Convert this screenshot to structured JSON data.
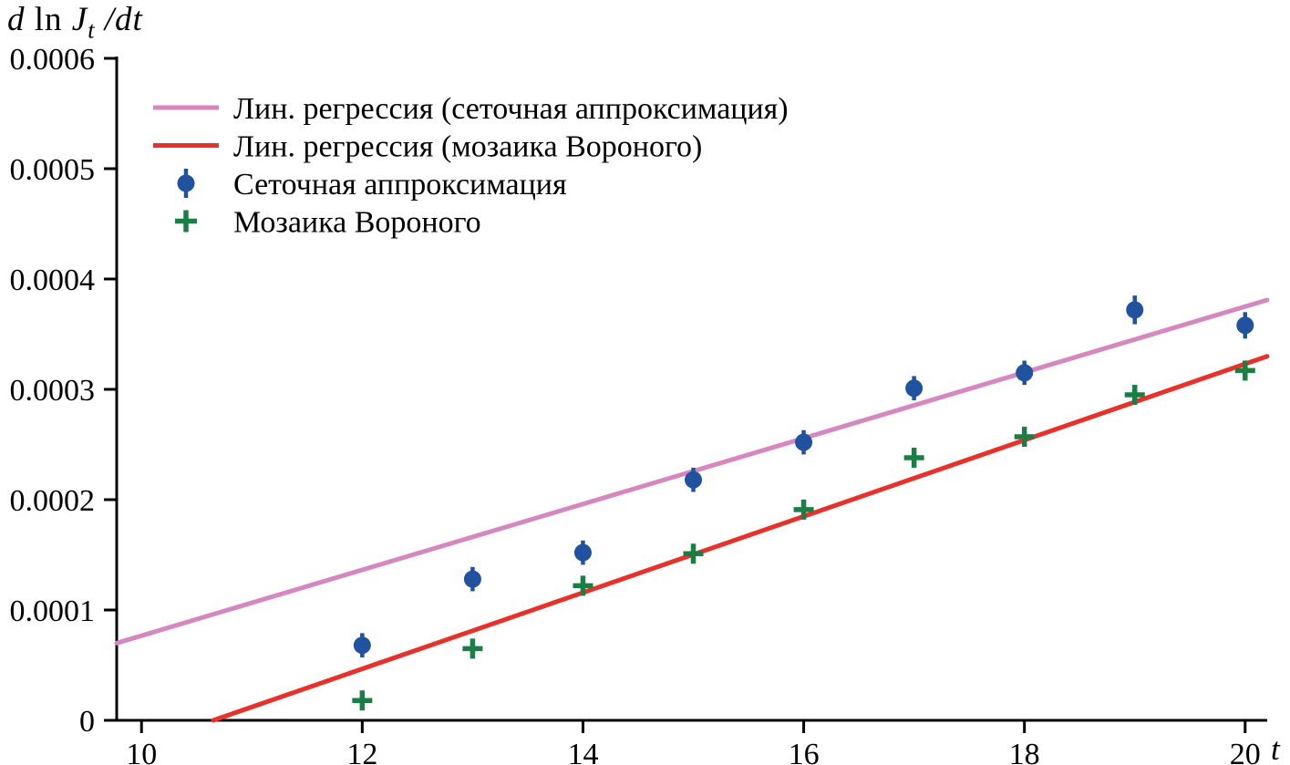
{
  "figure": {
    "background": "#ffffff"
  },
  "chart_data": {
    "type": "scatter",
    "title": "",
    "xlabel": "t",
    "ylabel": "d ln J_t /dt",
    "ylabel_parts": [
      "d",
      " ln ",
      "J",
      "t",
      " /dt"
    ],
    "xlim": [
      9.775,
      20.2
    ],
    "ylim": [
      0,
      0.0006
    ],
    "x_ticks": [
      10,
      12,
      14,
      16,
      18,
      20
    ],
    "x_tick_labels": [
      "10",
      "12",
      "14",
      "16",
      "18",
      "20"
    ],
    "y_ticks": [
      0,
      0.0001,
      0.0002,
      0.0003,
      0.0004,
      0.0005,
      0.0006
    ],
    "y_tick_labels": [
      "0",
      "0.0001",
      "0.0002",
      "0.0003",
      "0.0004",
      "0.0005",
      "0.0006"
    ],
    "grid": false,
    "legend_position": "top-left",
    "axis_color": "#000000",
    "series": [
      {
        "id": "regression-line-grid-approximation",
        "name": "Лин. регрессия (сеточная аппроксимация)",
        "type": "line",
        "color": "#d687c0",
        "x": [
          9.775,
          20.2
        ],
        "y": [
          7e-05,
          0.000381
        ]
      },
      {
        "id": "regression-line-voronoi",
        "name": "Лин. регрессия (мозаика Вороного)",
        "type": "line",
        "color": "#e8312b",
        "x": [
          10.65,
          20.2
        ],
        "y": [
          0,
          0.00033
        ]
      },
      {
        "id": "points-grid-approximation",
        "name": "Сеточная аппроксимация",
        "type": "scatter-errorbar",
        "color": "#2152a0",
        "x": [
          12,
          13,
          14,
          15,
          16,
          17,
          18,
          19,
          20
        ],
        "y": [
          6.8e-05,
          0.000128,
          0.000152,
          0.000218,
          0.000252,
          0.000301,
          0.000315,
          0.000372,
          0.000358
        ],
        "yerr": [
          1.1e-05,
          1.1e-05,
          1.1e-05,
          1.1e-05,
          1.1e-05,
          1.1e-05,
          1.1e-05,
          1.3e-05,
          1.2e-05
        ]
      },
      {
        "id": "points-voronoi",
        "name": "Мозаика Вороного",
        "type": "scatter-plus",
        "color": "#1a7e45",
        "x": [
          12,
          13,
          14,
          15,
          16,
          17,
          18,
          19,
          20
        ],
        "y": [
          1.8e-05,
          6.5e-05,
          0.000122,
          0.000151,
          0.000191,
          0.000238,
          0.000257,
          0.000295,
          0.000317
        ]
      }
    ]
  }
}
